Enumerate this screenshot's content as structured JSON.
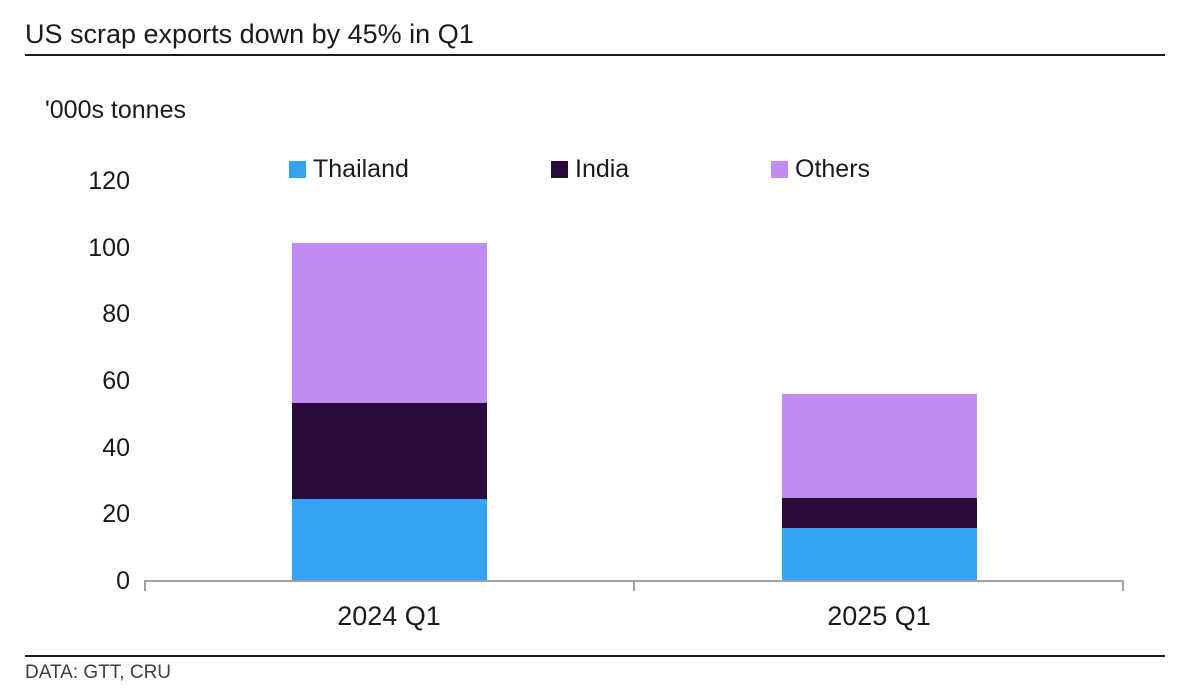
{
  "header": {
    "title": "US scrap exports down by 45% in Q1"
  },
  "footer": {
    "source": "DATA: GTT, CRU"
  },
  "chart_data": {
    "type": "bar",
    "stacked": true,
    "title": "US scrap exports down by 45% in Q1",
    "ylabel": "'000s tonnes",
    "categories": [
      "2024 Q1",
      "2025 Q1"
    ],
    "series": [
      {
        "name": "Thailand",
        "color": "#35a2f5",
        "values": [
          24.5,
          16
        ]
      },
      {
        "name": "India",
        "color": "#290b3b",
        "values": [
          29,
          9
        ]
      },
      {
        "name": "Others",
        "color": "#c08cf2",
        "values": [
          48,
          31
        ]
      }
    ],
    "totals": [
      101.5,
      56
    ],
    "ylim": [
      0,
      120
    ],
    "yticks": [
      0,
      20,
      40,
      60,
      80,
      100,
      120
    ],
    "legend_position": "top",
    "grid": false,
    "axis_color": "#a1a1a1"
  }
}
